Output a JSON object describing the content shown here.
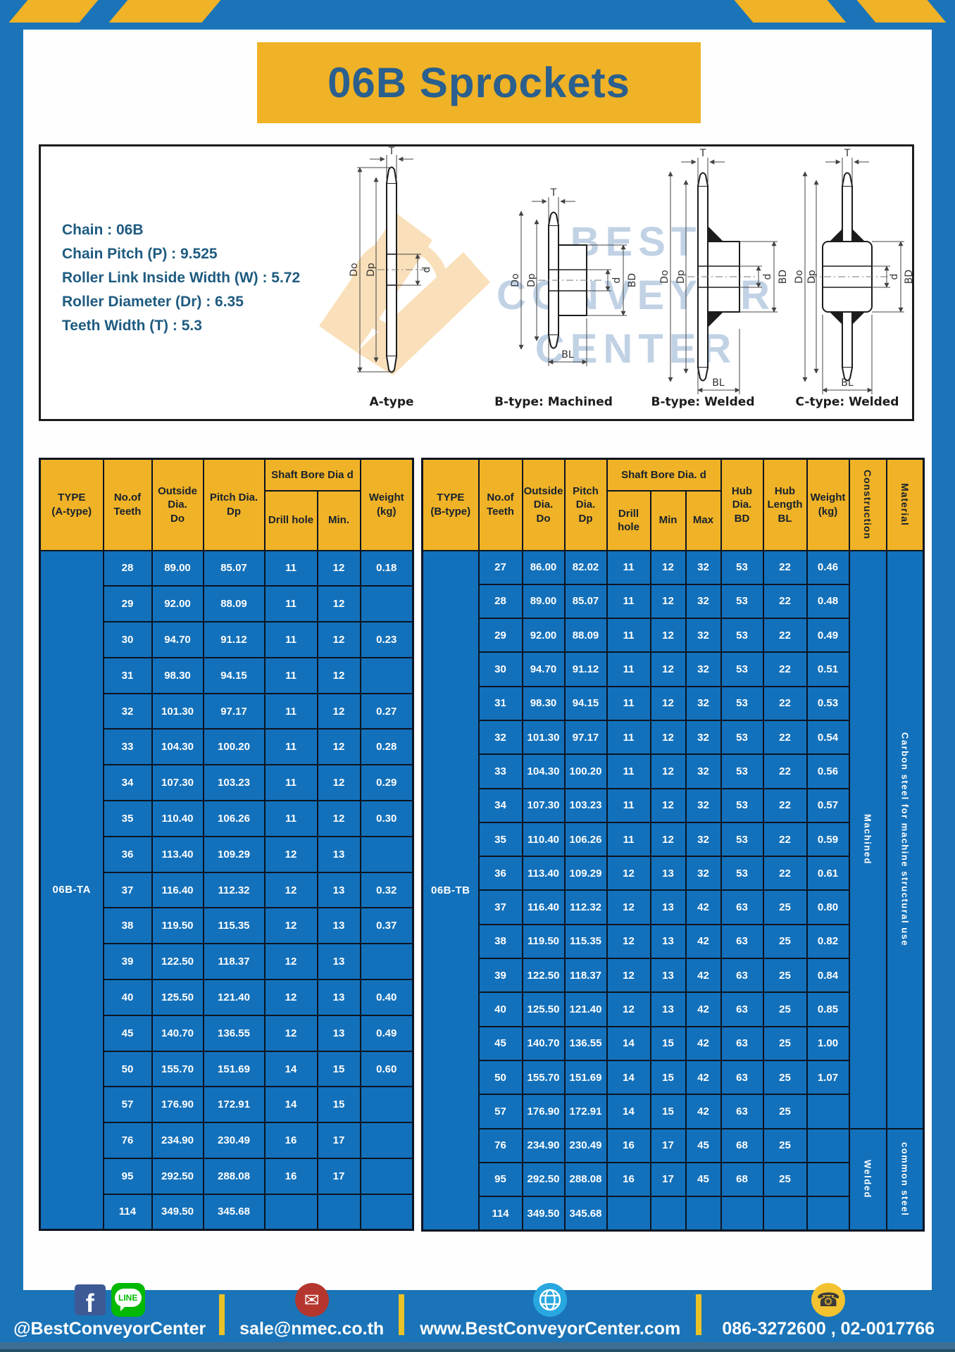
{
  "title": "06B Sprockets",
  "specs": {
    "lines": [
      "Chain : 06B",
      "Chain Pitch (P) : 9.525",
      "Roller Link Inside Width (W) : 5.72",
      "Roller Diameter (Dr) : 6.35",
      "Teeth Width (T) : 5.3"
    ]
  },
  "watermark": [
    "BEST",
    "CONVEYOR",
    "CENTER"
  ],
  "diagrams": {
    "labels": [
      "A-type",
      "B-type: Machined",
      "B-type: Welded",
      "C-type: Welded"
    ],
    "dims": {
      "T": "T",
      "Do": "Do",
      "Dp": "Dp",
      "d": "d",
      "BD": "BD",
      "BL": "BL"
    }
  },
  "table_a": {
    "header": {
      "type": "TYPE\n(A-type)",
      "teeth": "No.of\nTeeth",
      "outside": "Outside\nDia.\nDo",
      "pitch": "Pitch Dia.\nDp",
      "shaft_bore": "Shaft Bore Dia d",
      "drill": "Drill hole",
      "min": "Min.",
      "weight": "Weight\n(kg)"
    },
    "type_label": "06B-TA",
    "rows": [
      [
        "28",
        "89.00",
        "85.07",
        "11",
        "12",
        "0.18"
      ],
      [
        "29",
        "92.00",
        "88.09",
        "11",
        "12",
        ""
      ],
      [
        "30",
        "94.70",
        "91.12",
        "11",
        "12",
        "0.23"
      ],
      [
        "31",
        "98.30",
        "94.15",
        "11",
        "12",
        ""
      ],
      [
        "32",
        "101.30",
        "97.17",
        "11",
        "12",
        "0.27"
      ],
      [
        "33",
        "104.30",
        "100.20",
        "11",
        "12",
        "0.28"
      ],
      [
        "34",
        "107.30",
        "103.23",
        "11",
        "12",
        "0.29"
      ],
      [
        "35",
        "110.40",
        "106.26",
        "11",
        "12",
        "0.30"
      ],
      [
        "36",
        "113.40",
        "109.29",
        "12",
        "13",
        ""
      ],
      [
        "37",
        "116.40",
        "112.32",
        "12",
        "13",
        "0.32"
      ],
      [
        "38",
        "119.50",
        "115.35",
        "12",
        "13",
        "0.37"
      ],
      [
        "39",
        "122.50",
        "118.37",
        "12",
        "13",
        ""
      ],
      [
        "40",
        "125.50",
        "121.40",
        "12",
        "13",
        "0.40"
      ],
      [
        "45",
        "140.70",
        "136.55",
        "12",
        "13",
        "0.49"
      ],
      [
        "50",
        "155.70",
        "151.69",
        "14",
        "15",
        "0.60"
      ],
      [
        "57",
        "176.90",
        "172.91",
        "14",
        "15",
        ""
      ],
      [
        "76",
        "234.90",
        "230.49",
        "16",
        "17",
        ""
      ],
      [
        "95",
        "292.50",
        "288.08",
        "16",
        "17",
        ""
      ],
      [
        "114",
        "349.50",
        "345.68",
        "",
        "",
        ""
      ]
    ]
  },
  "table_b": {
    "header": {
      "type": "TYPE\n(B-type)",
      "teeth": "No.of\nTeeth",
      "outside": "Outside\nDia.\nDo",
      "pitch": "Pitch\nDia.\nDp",
      "shaft_bore": "Shaft Bore Dia. d",
      "drill": "Drill hole",
      "min": "Min",
      "max": "Max",
      "hub_dia": "Hub\nDia.\nBD",
      "hub_len": "Hub\nLength\nBL",
      "weight": "Weight\n(kg)",
      "construction": "Construction",
      "material": "Material"
    },
    "type_label": "06B-TB",
    "construction": [
      {
        "label": "Machined",
        "span": 17
      },
      {
        "label": "Welded",
        "span": 3
      }
    ],
    "material": [
      {
        "label": "Carbon steel for machine structural use",
        "span": 17
      },
      {
        "label": "common steel",
        "span": 3
      }
    ],
    "rows": [
      [
        "27",
        "86.00",
        "82.02",
        "11",
        "12",
        "32",
        "53",
        "22",
        "0.46"
      ],
      [
        "28",
        "89.00",
        "85.07",
        "11",
        "12",
        "32",
        "53",
        "22",
        "0.48"
      ],
      [
        "29",
        "92.00",
        "88.09",
        "11",
        "12",
        "32",
        "53",
        "22",
        "0.49"
      ],
      [
        "30",
        "94.70",
        "91.12",
        "11",
        "12",
        "32",
        "53",
        "22",
        "0.51"
      ],
      [
        "31",
        "98.30",
        "94.15",
        "11",
        "12",
        "32",
        "53",
        "22",
        "0.53"
      ],
      [
        "32",
        "101.30",
        "97.17",
        "11",
        "12",
        "32",
        "53",
        "22",
        "0.54"
      ],
      [
        "33",
        "104.30",
        "100.20",
        "11",
        "12",
        "32",
        "53",
        "22",
        "0.56"
      ],
      [
        "34",
        "107.30",
        "103.23",
        "11",
        "12",
        "32",
        "53",
        "22",
        "0.57"
      ],
      [
        "35",
        "110.40",
        "106.26",
        "11",
        "12",
        "32",
        "53",
        "22",
        "0.59"
      ],
      [
        "36",
        "113.40",
        "109.29",
        "12",
        "13",
        "32",
        "53",
        "22",
        "0.61"
      ],
      [
        "37",
        "116.40",
        "112.32",
        "12",
        "13",
        "42",
        "63",
        "25",
        "0.80"
      ],
      [
        "38",
        "119.50",
        "115.35",
        "12",
        "13",
        "42",
        "63",
        "25",
        "0.82"
      ],
      [
        "39",
        "122.50",
        "118.37",
        "12",
        "13",
        "42",
        "63",
        "25",
        "0.84"
      ],
      [
        "40",
        "125.50",
        "121.40",
        "12",
        "13",
        "42",
        "63",
        "25",
        "0.85"
      ],
      [
        "45",
        "140.70",
        "136.55",
        "14",
        "15",
        "42",
        "63",
        "25",
        "1.00"
      ],
      [
        "50",
        "155.70",
        "151.69",
        "14",
        "15",
        "42",
        "63",
        "25",
        "1.07"
      ],
      [
        "57",
        "176.90",
        "172.91",
        "14",
        "15",
        "42",
        "63",
        "25",
        ""
      ],
      [
        "76",
        "234.90",
        "230.49",
        "16",
        "17",
        "45",
        "68",
        "25",
        ""
      ],
      [
        "95",
        "292.50",
        "288.08",
        "16",
        "17",
        "45",
        "68",
        "25",
        ""
      ],
      [
        "114",
        "349.50",
        "345.68",
        "",
        "",
        "",
        "",
        "",
        ""
      ]
    ]
  },
  "footer": {
    "items": [
      {
        "text": "@BestConveyorCenter"
      },
      {
        "text": "sale@nmec.co.th"
      },
      {
        "text": "www.BestConveyorCenter.com"
      },
      {
        "text": "086-3272600 , 02-0017766"
      }
    ],
    "facebook_label": "f",
    "line_label": "LINE",
    "icons": {
      "mail": "✉",
      "phone": "☎"
    }
  },
  "colors": {
    "page_blue": "#1b74b8",
    "yellow": "#f0b226",
    "table_blue": "#1371bb",
    "title_text": "#2a5f8e",
    "spec_text": "#1e5b80"
  }
}
